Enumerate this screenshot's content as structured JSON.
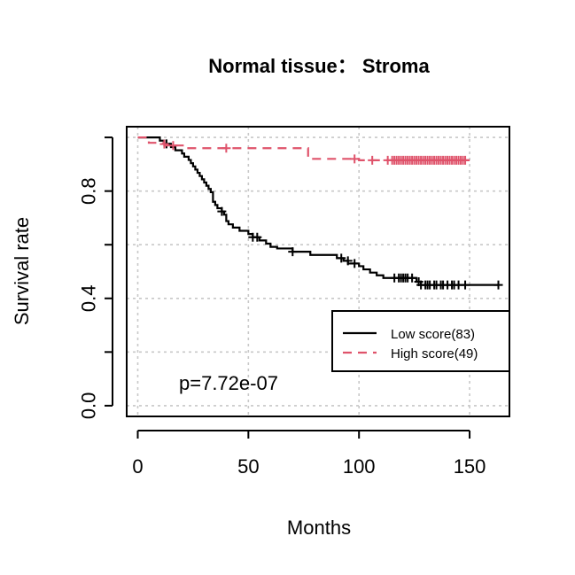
{
  "chart_data": {
    "type": "line",
    "subtype": "kaplan-meier",
    "title": "Normal tissue：  Stroma",
    "xlabel": "Months",
    "ylabel": "Survival rate",
    "xlim": [
      -5,
      168
    ],
    "ylim": [
      -0.04,
      1.04
    ],
    "xticks": [
      0,
      50,
      100,
      150
    ],
    "xtick_labels": [
      "0",
      "50",
      "100",
      "150"
    ],
    "yticks": [
      0.0,
      0.2,
      0.4,
      0.6,
      0.8,
      1.0
    ],
    "ytick_labels": [
      "0.0",
      "0.4",
      "0.8"
    ],
    "ytick_labeled_values": [
      0.0,
      0.4,
      0.8
    ],
    "grid": true,
    "grid_style": "dotted",
    "legend_position": "right",
    "annotation": "p=7.72e-07",
    "series": [
      {
        "name": "Low score(83)",
        "color": "#000000",
        "dash": "solid",
        "steps": [
          [
            0,
            1.0
          ],
          [
            10,
            0.988
          ],
          [
            12,
            0.976
          ],
          [
            15,
            0.964
          ],
          [
            17,
            0.952
          ],
          [
            20,
            0.94
          ],
          [
            21,
            0.928
          ],
          [
            23,
            0.916
          ],
          [
            24,
            0.904
          ],
          [
            25,
            0.892
          ],
          [
            26,
            0.88
          ],
          [
            27,
            0.868
          ],
          [
            28,
            0.856
          ],
          [
            29,
            0.844
          ],
          [
            30,
            0.832
          ],
          [
            31,
            0.82
          ],
          [
            32,
            0.808
          ],
          [
            33,
            0.796
          ],
          [
            34,
            0.76
          ],
          [
            35,
            0.748
          ],
          [
            36,
            0.736
          ],
          [
            38,
            0.724
          ],
          [
            39,
            0.712
          ],
          [
            40,
            0.688
          ],
          [
            41,
            0.676
          ],
          [
            43,
            0.664
          ],
          [
            46,
            0.652
          ],
          [
            50,
            0.64
          ],
          [
            52,
            0.628
          ],
          [
            55,
            0.616
          ],
          [
            58,
            0.604
          ],
          [
            60,
            0.592
          ],
          [
            63,
            0.586
          ],
          [
            70,
            0.574
          ],
          [
            78,
            0.562
          ],
          [
            90,
            0.55
          ],
          [
            93,
            0.54
          ],
          [
            95,
            0.53
          ],
          [
            100,
            0.52
          ],
          [
            102,
            0.508
          ],
          [
            105,
            0.496
          ],
          [
            108,
            0.486
          ],
          [
            111,
            0.476
          ],
          [
            126,
            0.462
          ],
          [
            128,
            0.45
          ],
          [
            163,
            0.45
          ]
        ],
        "censored": [
          [
            13,
            0.976
          ],
          [
            38,
            0.724
          ],
          [
            52,
            0.628
          ],
          [
            54,
            0.628
          ],
          [
            70,
            0.574
          ],
          [
            92,
            0.55
          ],
          [
            95,
            0.54
          ],
          [
            98,
            0.53
          ],
          [
            116,
            0.476
          ],
          [
            118,
            0.476
          ],
          [
            119,
            0.476
          ],
          [
            120,
            0.476
          ],
          [
            121,
            0.476
          ],
          [
            122,
            0.476
          ],
          [
            124,
            0.476
          ],
          [
            127,
            0.462
          ],
          [
            128,
            0.45
          ],
          [
            130,
            0.45
          ],
          [
            131,
            0.45
          ],
          [
            132,
            0.45
          ],
          [
            134,
            0.45
          ],
          [
            135,
            0.45
          ],
          [
            137,
            0.45
          ],
          [
            138,
            0.45
          ],
          [
            140,
            0.45
          ],
          [
            142,
            0.45
          ],
          [
            143,
            0.45
          ],
          [
            145,
            0.45
          ],
          [
            148,
            0.45
          ],
          [
            163,
            0.45
          ]
        ]
      },
      {
        "name": "High score(49)",
        "color": "#DF536B",
        "dash": "dashed",
        "steps": [
          [
            0,
            1.0
          ],
          [
            5,
            0.98
          ],
          [
            12,
            0.97
          ],
          [
            22,
            0.96
          ],
          [
            75,
            0.96
          ],
          [
            77,
            0.92
          ],
          [
            99,
            0.92
          ],
          [
            100,
            0.915
          ],
          [
            150,
            0.915
          ]
        ],
        "censored": [
          [
            12,
            0.975
          ],
          [
            16,
            0.97
          ],
          [
            40,
            0.96
          ],
          [
            98,
            0.92
          ],
          [
            106,
            0.915
          ],
          [
            113,
            0.915
          ],
          [
            115,
            0.915
          ],
          [
            116,
            0.915
          ],
          [
            117,
            0.915
          ],
          [
            118,
            0.915
          ],
          [
            119,
            0.915
          ],
          [
            120,
            0.915
          ],
          [
            121,
            0.915
          ],
          [
            122,
            0.915
          ],
          [
            123,
            0.915
          ],
          [
            124,
            0.915
          ],
          [
            125,
            0.915
          ],
          [
            126,
            0.915
          ],
          [
            127,
            0.915
          ],
          [
            128,
            0.915
          ],
          [
            129,
            0.915
          ],
          [
            130,
            0.915
          ],
          [
            131,
            0.915
          ],
          [
            132,
            0.915
          ],
          [
            133,
            0.915
          ],
          [
            134,
            0.915
          ],
          [
            135,
            0.915
          ],
          [
            136,
            0.915
          ],
          [
            137,
            0.915
          ],
          [
            138,
            0.915
          ],
          [
            139,
            0.915
          ],
          [
            140,
            0.915
          ],
          [
            141,
            0.915
          ],
          [
            142,
            0.915
          ],
          [
            143,
            0.915
          ],
          [
            144,
            0.915
          ],
          [
            145,
            0.915
          ],
          [
            146,
            0.915
          ],
          [
            147,
            0.915
          ],
          [
            148,
            0.915
          ]
        ]
      }
    ]
  }
}
